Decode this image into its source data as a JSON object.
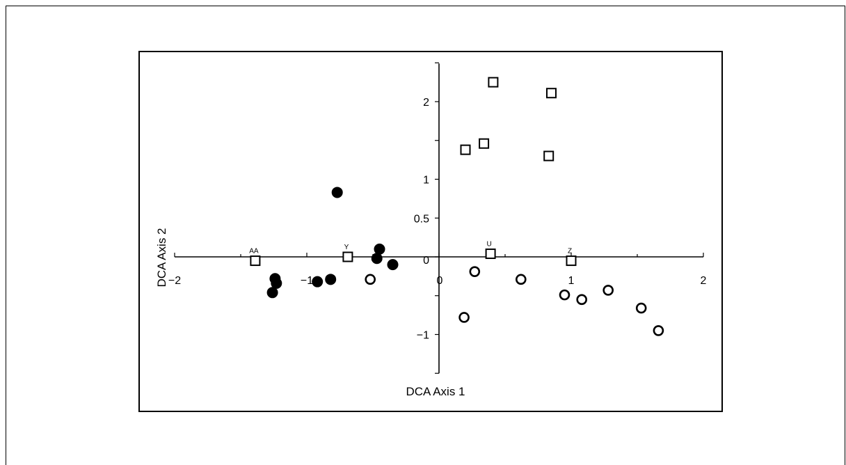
{
  "chart_data": {
    "type": "scatter",
    "title": "",
    "xlabel": "DCA Axis 1",
    "ylabel": "DCA Axis 2",
    "xlim": [
      -2,
      2
    ],
    "ylim": [
      -1.5,
      2.5
    ],
    "x_tick_labels": [
      "−2",
      "−1",
      "0",
      "1",
      "2"
    ],
    "x_ticks": [
      -2,
      -1,
      0,
      1,
      2
    ],
    "y_tick_labels": [
      "2",
      "1",
      "0.5",
      "0",
      "−1"
    ],
    "y_ticks": [
      2,
      1,
      0.5,
      0,
      -1
    ],
    "grid": false,
    "legend": "none",
    "series": [
      {
        "marker": "filled-circle",
        "points": [
          {
            "x": -0.77,
            "y": 0.83
          },
          {
            "x": -0.45,
            "y": 0.1
          },
          {
            "x": -0.47,
            "y": -0.02
          },
          {
            "x": -0.35,
            "y": -0.1
          },
          {
            "x": -0.82,
            "y": -0.29
          },
          {
            "x": -0.92,
            "y": -0.32
          },
          {
            "x": -1.24,
            "y": -0.28
          },
          {
            "x": -1.23,
            "y": -0.34
          },
          {
            "x": -1.26,
            "y": -0.46
          }
        ]
      },
      {
        "marker": "open-circle",
        "points": [
          {
            "x": -0.52,
            "y": -0.29
          },
          {
            "x": 0.27,
            "y": -0.19
          },
          {
            "x": 0.62,
            "y": -0.29
          },
          {
            "x": 0.19,
            "y": -0.78
          },
          {
            "x": 0.95,
            "y": -0.49
          },
          {
            "x": 1.08,
            "y": -0.55
          },
          {
            "x": 1.28,
            "y": -0.43
          },
          {
            "x": 1.53,
            "y": -0.66
          },
          {
            "x": 1.66,
            "y": -0.95
          }
        ]
      },
      {
        "marker": "open-square",
        "points": [
          {
            "x": 0.41,
            "y": 2.25
          },
          {
            "x": 0.85,
            "y": 2.11
          },
          {
            "x": 0.2,
            "y": 1.38
          },
          {
            "x": 0.34,
            "y": 1.46
          },
          {
            "x": 0.83,
            "y": 1.3
          },
          {
            "x": -1.39,
            "y": -0.05,
            "label": "AA"
          },
          {
            "x": -0.69,
            "y": 0.0,
            "label": "Y"
          },
          {
            "x": 0.39,
            "y": 0.04,
            "label": "U"
          },
          {
            "x": 1.0,
            "y": -0.05,
            "label": "Z"
          }
        ]
      }
    ]
  }
}
